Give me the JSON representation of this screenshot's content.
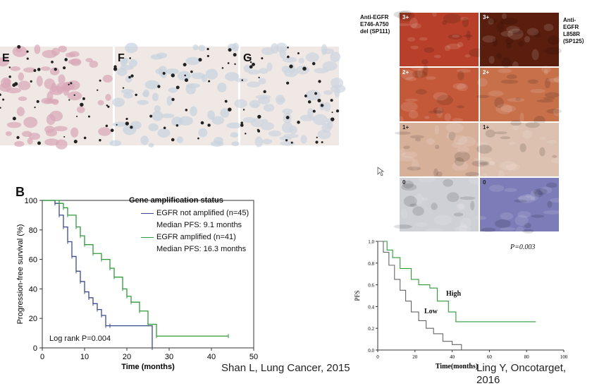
{
  "top_panels": [
    {
      "label": "E",
      "tint": "#d9a7b8"
    },
    {
      "label": "F",
      "tint": "#c7d3df"
    },
    {
      "label": "G",
      "tint": "#cdd6df"
    }
  ],
  "ihc": {
    "left_label": [
      "Anti-EGFR",
      "E746-A750",
      "del (SP111)"
    ],
    "right_label": [
      "Anti-EGFR",
      "L858R",
      "(SP125）"
    ],
    "rows": [
      {
        "score": "3+",
        "left": "#b8402a",
        "right": "#5a1e0e"
      },
      {
        "score": "2+",
        "left": "#c4593a",
        "right": "#c8704a"
      },
      {
        "score": "1+",
        "left": "#d7b09a",
        "right": "#dcc1b0"
      },
      {
        "score": "0",
        "left": "#cfcfd6",
        "right": "#7c7cb8"
      }
    ]
  },
  "chart_b": {
    "panel_label": "B",
    "legend_title": "Gene amplification status",
    "legend_items": [
      {
        "name": "EGFR not amplified (n=45)",
        "median": "Median PFS: 9.1 months",
        "color": "#3b4a8c"
      },
      {
        "name": "EGFR amplified (n=41)",
        "median": "Median PFS: 16.3 months",
        "color": "#2e9a3a"
      }
    ],
    "ylabel": "Progression-free survival  (%)",
    "xlabel": "Time (months)",
    "annotation": "Log rank P=0.004",
    "citation": "Shan L, Lung Cancer, 2015"
  },
  "chart_c": {
    "ylabel": "PFS",
    "xlabel": "Time(months)",
    "pvalue": "P=0.003",
    "label_high": "High",
    "label_low": "Low",
    "citation": "Ling Y, Oncotarget, 2016"
  },
  "chart_data": [
    {
      "type": "line",
      "title": "",
      "xlabel": "Time (months)",
      "ylabel": "Progression-free survival  (%)",
      "xlim": [
        0,
        50
      ],
      "ylim": [
        0,
        100
      ],
      "xticks": [
        0,
        10,
        20,
        30,
        40,
        50
      ],
      "yticks": [
        0,
        20,
        40,
        60,
        80,
        100
      ],
      "series": [
        {
          "name": "EGFR not amplified (n=45)",
          "color": "#3b4a8c",
          "x": [
            0,
            3,
            4,
            5,
            6,
            7,
            8,
            9,
            10,
            11,
            12,
            13,
            14,
            15,
            16,
            26
          ],
          "y": [
            100,
            98,
            90,
            82,
            72,
            62,
            52,
            45,
            38,
            34,
            30,
            26,
            22,
            15,
            15,
            0
          ]
        },
        {
          "name": "EGFR amplified (n=41)",
          "color": "#2e9a3a",
          "x": [
            0,
            4,
            5,
            6,
            8,
            9,
            10,
            12,
            14,
            16,
            17,
            19,
            20,
            21,
            23,
            25,
            27,
            44
          ],
          "y": [
            100,
            98,
            95,
            90,
            82,
            76,
            70,
            64,
            60,
            54,
            48,
            40,
            35,
            31,
            25,
            16,
            8,
            8
          ]
        }
      ]
    },
    {
      "type": "line",
      "title": "",
      "xlabel": "Time(months)",
      "ylabel": "PFS",
      "xlim": [
        0,
        100
      ],
      "ylim": [
        0,
        1.0
      ],
      "xticks": [
        0,
        20,
        40,
        60,
        80,
        100
      ],
      "yticks": [
        0.0,
        0.2,
        0.4,
        0.6,
        0.8,
        1.0
      ],
      "series": [
        {
          "name": "High",
          "color": "#2e9a3a",
          "x": [
            0,
            5,
            8,
            12,
            18,
            22,
            28,
            32,
            38,
            42,
            55,
            85
          ],
          "y": [
            1.0,
            0.92,
            0.85,
            0.75,
            0.65,
            0.6,
            0.57,
            0.45,
            0.35,
            0.26,
            0.26,
            0.26
          ]
        },
        {
          "name": "Low",
          "color": "#666666",
          "x": [
            0,
            3,
            6,
            9,
            12,
            15,
            18,
            22,
            26,
            30,
            35,
            40,
            45
          ],
          "y": [
            1.0,
            0.9,
            0.78,
            0.65,
            0.55,
            0.45,
            0.35,
            0.27,
            0.2,
            0.15,
            0.08,
            0.05,
            0.0
          ]
        }
      ]
    }
  ]
}
